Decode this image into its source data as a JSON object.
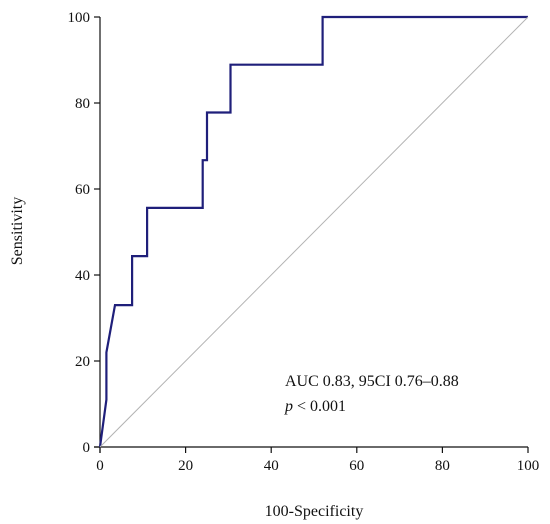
{
  "chart_data": {
    "type": "line",
    "title": "",
    "xlabel": "100-Specificity",
    "ylabel": "Sensitivity",
    "xlim": [
      0,
      100
    ],
    "ylim": [
      0,
      100
    ],
    "x_ticks": [
      0,
      20,
      40,
      60,
      80,
      100
    ],
    "y_ticks": [
      0,
      20,
      40,
      60,
      80,
      100
    ],
    "grid": false,
    "legend": "none",
    "series": [
      {
        "color": "#1f1f7a",
        "points": [
          [
            0,
            0
          ],
          [
            0,
            0
          ],
          [
            1.5,
            11
          ],
          [
            1.5,
            22
          ],
          [
            3.5,
            33
          ],
          [
            7.5,
            33
          ],
          [
            7.5,
            44.4
          ],
          [
            11,
            44.4
          ],
          [
            11,
            55.6
          ],
          [
            24,
            55.6
          ],
          [
            24,
            66.7
          ],
          [
            25,
            66.7
          ],
          [
            25,
            77.8
          ],
          [
            30.5,
            77.8
          ],
          [
            30.5,
            88.9
          ],
          [
            52,
            88.9
          ],
          [
            52,
            100
          ],
          [
            100,
            100
          ]
        ]
      },
      {
        "color": "#b3b3b3",
        "points": [
          [
            0,
            0
          ],
          [
            100,
            100
          ]
        ]
      }
    ],
    "annotation": {
      "line1": "AUC 0.83, 95CI 0.76–0.88",
      "line2_p": "p",
      "line2_rest": " < 0.001"
    }
  }
}
